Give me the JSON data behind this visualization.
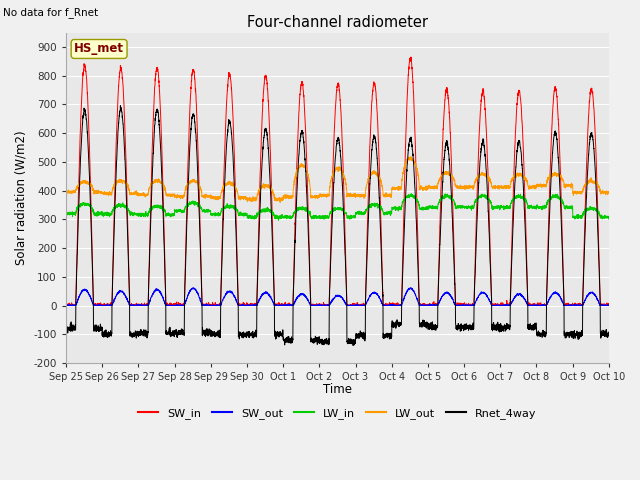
{
  "title": "Four-channel radiometer",
  "top_left_text": "No data for f_Rnet",
  "station_label": "HS_met",
  "ylabel": "Solar radiation (W/m2)",
  "xlabel": "Time",
  "ylim": [
    -200,
    950
  ],
  "yticks": [
    -200,
    -100,
    0,
    100,
    200,
    300,
    400,
    500,
    600,
    700,
    800,
    900
  ],
  "xtick_labels": [
    "Sep 25",
    "Sep 26",
    "Sep 27",
    "Sep 28",
    "Sep 29",
    "Sep 30",
    "Oct 1",
    "Oct 2",
    "Oct 3",
    "Oct 4",
    "Oct 5",
    "Oct 6",
    "Oct 7",
    "Oct 8",
    "Oct 9",
    "Oct 10"
  ],
  "legend_entries": [
    {
      "label": "SW_in",
      "color": "#ff0000"
    },
    {
      "label": "SW_out",
      "color": "#0000ff"
    },
    {
      "label": "LW_in",
      "color": "#00cc00"
    },
    {
      "label": "LW_out",
      "color": "#ff9900"
    },
    {
      "label": "Rnet_4way",
      "color": "#000000"
    }
  ],
  "background_color": "#f0f0f0",
  "plot_bg_color": "#e8e8e8",
  "grid_color": "#ffffff",
  "n_days": 15,
  "SW_in_peaks": [
    835,
    825,
    825,
    820,
    805,
    800,
    775,
    770,
    775,
    860,
    750,
    745,
    745,
    755,
    755
  ],
  "SW_out_peaks": [
    55,
    50,
    55,
    60,
    50,
    45,
    40,
    35,
    45,
    60,
    45,
    45,
    40,
    45,
    45
  ],
  "LW_in_night": [
    320,
    318,
    316,
    330,
    318,
    308,
    308,
    308,
    322,
    338,
    342,
    342,
    342,
    342,
    308
  ],
  "LW_in_day_add": [
    35,
    32,
    30,
    28,
    28,
    25,
    30,
    30,
    30,
    45,
    40,
    40,
    38,
    38,
    30
  ],
  "LW_out_night": [
    395,
    390,
    385,
    380,
    375,
    370,
    378,
    383,
    383,
    408,
    412,
    412,
    412,
    418,
    393
  ],
  "LW_out_day_add": [
    35,
    45,
    50,
    55,
    52,
    48,
    110,
    95,
    80,
    105,
    50,
    45,
    45,
    40,
    40
  ],
  "Rnet_day_peaks": [
    680,
    685,
    680,
    665,
    640,
    615,
    605,
    580,
    590,
    580,
    565,
    570,
    570,
    600,
    600
  ],
  "Rnet_night_vals": [
    -80,
    -100,
    -95,
    -95,
    -100,
    -100,
    -120,
    -125,
    -105,
    -65,
    -75,
    -75,
    -75,
    -100,
    -100
  ]
}
